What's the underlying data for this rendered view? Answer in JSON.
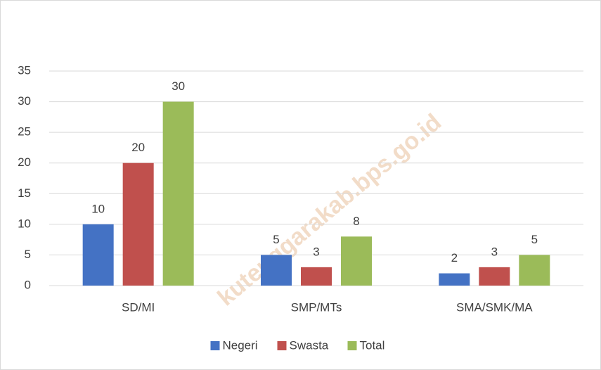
{
  "chart_data": {
    "type": "bar",
    "categories": [
      "SD/MI",
      "SMP/MTs",
      "SMA/SMK/MA"
    ],
    "series": [
      {
        "name": "Negeri",
        "color": "#4472c4",
        "values": [
          10,
          5,
          2
        ]
      },
      {
        "name": "Swasta",
        "color": "#c0504d",
        "values": [
          20,
          3,
          3
        ]
      },
      {
        "name": "Total",
        "color": "#9bbb59",
        "values": [
          30,
          8,
          5
        ]
      }
    ],
    "ylim": [
      0,
      35
    ],
    "yticks": [
      0,
      5,
      10,
      15,
      20,
      25,
      30,
      35
    ],
    "grid": true,
    "legend": "bottom",
    "watermark": "kutenggarakab.bps.go.id"
  }
}
